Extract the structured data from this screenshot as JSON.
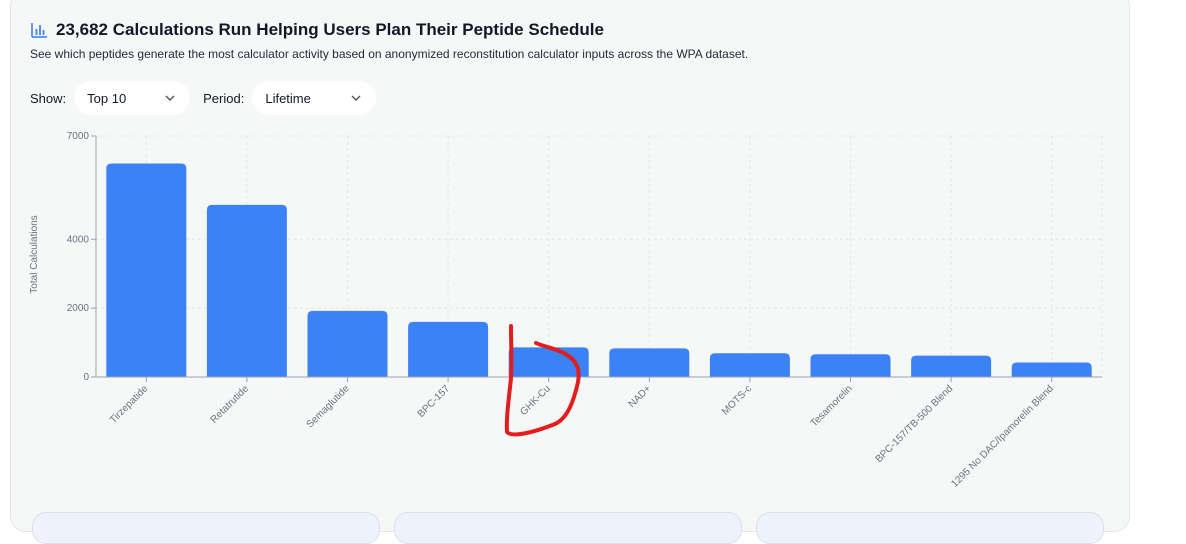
{
  "header": {
    "title": "23,682 Calculations Run Helping Users Plan Their Peptide Schedule",
    "subtitle": "See which peptides generate the most calculator activity based on anonymized reconstitution calculator inputs across the WPA dataset.",
    "title_icon": "bar-chart-icon"
  },
  "controls": {
    "show_label": "Show:",
    "show_value": "Top 10",
    "period_label": "Period:",
    "period_value": "Lifetime"
  },
  "colors": {
    "bar": "#3b82f6",
    "accent": "#3b82f6",
    "annotation": "#e11d1d"
  },
  "chart_data": {
    "type": "bar",
    "categories": [
      "Tirzepatide",
      "Retatrutide",
      "Semaglutide",
      "BPC-157",
      "GHK-Cu",
      "NAD+",
      "MOTS-c",
      "Tesamorelin",
      "BPC-157/TB-500 Blend",
      "1295 No DAC/Ipamorelin Blend"
    ],
    "values": [
      6200,
      5000,
      1920,
      1600,
      860,
      830,
      690,
      660,
      620,
      420
    ],
    "ylabel": "Total Calculations",
    "y_ticks": [
      0,
      2000,
      4000,
      7000
    ],
    "ylim": [
      0,
      7000
    ],
    "grid": true,
    "legend": "none"
  }
}
